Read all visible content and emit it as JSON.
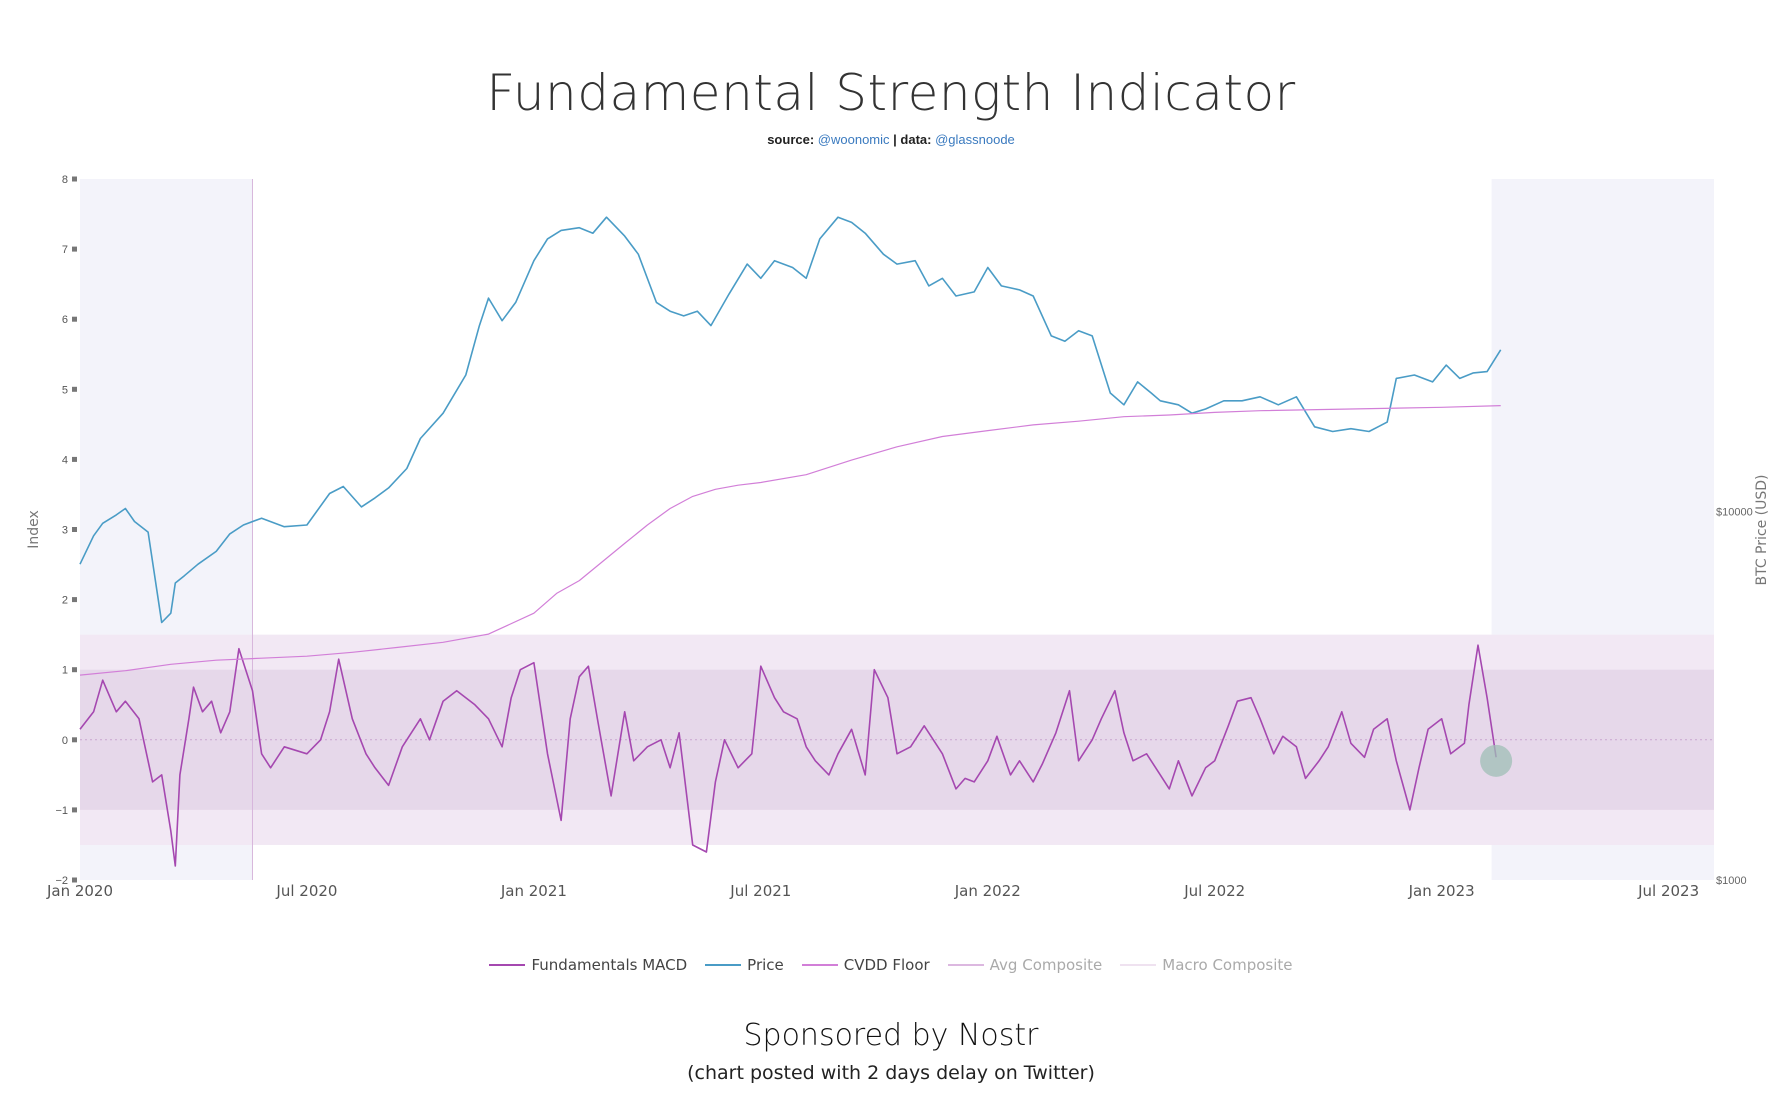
{
  "header": {
    "title": "Fundamental Strength Indicator",
    "source_prefix": "source:",
    "source_handle": "@woonomic",
    "data_prefix": "| data:",
    "data_handle": "@glassnoode"
  },
  "footer": {
    "sponsor": "Sponsored by Nostr",
    "note": "(chart posted with 2 days delay on Twitter)"
  },
  "colors": {
    "price": "#4a9cc6",
    "macd": "#a548b0",
    "cvdd": "#d27fd8",
    "avg": "#dcb8e0",
    "macro": "#efe2f0",
    "shade": "#f3f3fa",
    "band_outer": "#f2e8f4",
    "band_inner": "#e6d8ea",
    "marker": "#9fbfb5"
  },
  "chart_data": {
    "type": "line",
    "x_ticks": [
      "Jan 2020",
      "Jul 2020",
      "Jan 2021",
      "Jul 2021",
      "Jan 2022",
      "Jul 2022",
      "Jan 2023",
      "Jul 2023"
    ],
    "x_tick_dates": [
      2020.0,
      2020.5,
      2021.0,
      2021.5,
      2022.0,
      2022.5,
      2023.0,
      2023.5
    ],
    "x_range": [
      2020.0,
      2023.6
    ],
    "left_axis": {
      "label": "Index",
      "range": [
        -2,
        8
      ],
      "ticks": [
        "−2",
        "−1",
        "0",
        "1",
        "2",
        "3",
        "4",
        "5",
        "6",
        "7",
        "8"
      ],
      "tick_values": [
        -2,
        -1,
        0,
        1,
        2,
        3,
        4,
        5,
        6,
        7,
        8
      ]
    },
    "right_axis": {
      "label": "BTC Price (USD)",
      "scale": "log",
      "ticks": [
        "$1000",
        "$10000"
      ],
      "tick_values": [
        1000,
        10000
      ]
    },
    "shaded_periods": [
      [
        2020.0,
        2020.38
      ],
      [
        2023.11,
        2023.6
      ]
    ],
    "bands": {
      "outer": [
        -1.5,
        1.5
      ],
      "inner": [
        -1,
        1
      ]
    },
    "series": [
      {
        "name": "Fundamentals MACD",
        "axis": "left",
        "x": [
          2020.0,
          2020.03,
          2020.05,
          2020.08,
          2020.1,
          2020.13,
          2020.16,
          2020.18,
          2020.2,
          2020.21,
          2020.22,
          2020.24,
          2020.25,
          2020.27,
          2020.29,
          2020.31,
          2020.33,
          2020.35,
          2020.38,
          2020.4,
          2020.42,
          2020.45,
          2020.5,
          2020.53,
          2020.55,
          2020.57,
          2020.6,
          2020.63,
          2020.65,
          2020.68,
          2020.71,
          2020.75,
          2020.77,
          2020.8,
          2020.83,
          2020.85,
          2020.87,
          2020.9,
          2020.93,
          2020.95,
          2020.97,
          2021.0,
          2021.03,
          2021.06,
          2021.08,
          2021.1,
          2021.12,
          2021.14,
          2021.17,
          2021.2,
          2021.22,
          2021.25,
          2021.28,
          2021.3,
          2021.32,
          2021.35,
          2021.38,
          2021.4,
          2021.42,
          2021.45,
          2021.48,
          2021.5,
          2021.53,
          2021.55,
          2021.58,
          2021.6,
          2021.62,
          2021.65,
          2021.67,
          2021.7,
          2021.73,
          2021.75,
          2021.78,
          2021.8,
          2021.83,
          2021.86,
          2021.88,
          2021.9,
          2021.93,
          2021.95,
          2021.97,
          2022.0,
          2022.02,
          2022.05,
          2022.07,
          2022.1,
          2022.12,
          2022.15,
          2022.18,
          2022.2,
          2022.23,
          2022.25,
          2022.28,
          2022.3,
          2022.32,
          2022.35,
          2022.38,
          2022.4,
          2022.42,
          2022.45,
          2022.48,
          2022.5,
          2022.53,
          2022.55,
          2022.58,
          2022.6,
          2022.63,
          2022.65,
          2022.68,
          2022.7,
          2022.73,
          2022.75,
          2022.78,
          2022.8,
          2022.83,
          2022.85,
          2022.88,
          2022.9,
          2022.93,
          2022.95,
          2022.97,
          2023.0,
          2023.02,
          2023.05,
          2023.06,
          2023.08,
          2023.1,
          2023.12
        ],
        "y": [
          0.15,
          0.4,
          0.85,
          0.4,
          0.55,
          0.3,
          -0.6,
          -0.5,
          -1.3,
          -1.8,
          -0.5,
          0.3,
          0.75,
          0.4,
          0.55,
          0.1,
          0.4,
          1.3,
          0.7,
          -0.2,
          -0.4,
          -0.1,
          -0.2,
          0.0,
          0.4,
          1.15,
          0.3,
          -0.2,
          -0.4,
          -0.65,
          -0.1,
          0.3,
          0.0,
          0.55,
          0.7,
          0.6,
          0.5,
          0.3,
          -0.1,
          0.6,
          1.0,
          1.1,
          -0.2,
          -1.15,
          0.3,
          0.9,
          1.05,
          0.3,
          -0.8,
          0.4,
          -0.3,
          -0.1,
          0.0,
          -0.4,
          0.1,
          -1.5,
          -1.6,
          -0.6,
          0.0,
          -0.4,
          -0.2,
          1.05,
          0.6,
          0.4,
          0.3,
          -0.1,
          -0.3,
          -0.5,
          -0.2,
          0.15,
          -0.5,
          1.0,
          0.6,
          -0.2,
          -0.1,
          0.2,
          0.0,
          -0.2,
          -0.7,
          -0.55,
          -0.6,
          -0.3,
          0.05,
          -0.5,
          -0.3,
          -0.6,
          -0.35,
          0.1,
          0.7,
          -0.3,
          0.0,
          0.3,
          0.7,
          0.1,
          -0.3,
          -0.2,
          -0.5,
          -0.7,
          -0.3,
          -0.8,
          -0.4,
          -0.3,
          0.2,
          0.55,
          0.6,
          0.3,
          -0.2,
          0.05,
          -0.1,
          -0.55,
          -0.3,
          -0.1,
          0.4,
          -0.05,
          -0.25,
          0.15,
          0.3,
          -0.3,
          -1.0,
          -0.4,
          0.15,
          0.3,
          -0.2,
          -0.05,
          0.5,
          1.35,
          0.6,
          -0.25
        ]
      },
      {
        "name": "Price",
        "axis": "right",
        "x": [
          2020.0,
          2020.03,
          2020.05,
          2020.08,
          2020.1,
          2020.12,
          2020.15,
          2020.18,
          2020.2,
          2020.21,
          2020.23,
          2020.26,
          2020.3,
          2020.33,
          2020.36,
          2020.4,
          2020.45,
          2020.5,
          2020.55,
          2020.58,
          2020.62,
          2020.65,
          2020.68,
          2020.72,
          2020.75,
          2020.8,
          2020.85,
          2020.88,
          2020.9,
          2020.93,
          2020.96,
          2021.0,
          2021.03,
          2021.06,
          2021.1,
          2021.13,
          2021.16,
          2021.2,
          2021.23,
          2021.27,
          2021.3,
          2021.33,
          2021.36,
          2021.39,
          2021.43,
          2021.47,
          2021.5,
          2021.53,
          2021.57,
          2021.6,
          2021.63,
          2021.67,
          2021.7,
          2021.73,
          2021.77,
          2021.8,
          2021.84,
          2021.87,
          2021.9,
          2021.93,
          2021.97,
          2022.0,
          2022.03,
          2022.07,
          2022.1,
          2022.14,
          2022.17,
          2022.2,
          2022.23,
          2022.27,
          2022.3,
          2022.33,
          2022.36,
          2022.38,
          2022.42,
          2022.45,
          2022.48,
          2022.52,
          2022.56,
          2022.6,
          2022.64,
          2022.68,
          2022.72,
          2022.76,
          2022.8,
          2022.84,
          2022.86,
          2022.88,
          2022.9,
          2022.94,
          2022.98,
          2023.01,
          2023.04,
          2023.07,
          2023.1,
          2023.13
        ],
        "y": [
          7200,
          8600,
          9300,
          9800,
          10200,
          9400,
          8800,
          5000,
          5300,
          6400,
          6700,
          7200,
          7800,
          8700,
          9200,
          9600,
          9100,
          9200,
          11200,
          11700,
          10300,
          10900,
          11600,
          13100,
          15800,
          18500,
          23500,
          32000,
          38000,
          33000,
          37000,
          48000,
          55000,
          58000,
          59000,
          57000,
          63000,
          56000,
          50000,
          37000,
          35000,
          34000,
          35000,
          32000,
          39000,
          47000,
          43000,
          48000,
          46000,
          43000,
          55000,
          63000,
          61000,
          57000,
          50000,
          47000,
          48000,
          41000,
          43000,
          38500,
          39500,
          46000,
          41000,
          40000,
          38500,
          30000,
          29000,
          31000,
          30000,
          21000,
          19500,
          22500,
          21000,
          20000,
          19500,
          18500,
          19000,
          20000,
          20000,
          20500,
          19500,
          20500,
          17000,
          16500,
          16800,
          16500,
          17000,
          17500,
          23000,
          23500,
          22500,
          25000,
          23000,
          23800,
          24000,
          27500
        ]
      },
      {
        "name": "CVDD Floor",
        "axis": "right",
        "x": [
          2020.0,
          2020.1,
          2020.2,
          2020.3,
          2020.4,
          2020.5,
          2020.6,
          2020.7,
          2020.8,
          2020.9,
          2021.0,
          2021.05,
          2021.1,
          2021.15,
          2021.2,
          2021.25,
          2021.3,
          2021.35,
          2021.4,
          2021.45,
          2021.5,
          2021.6,
          2021.7,
          2021.8,
          2021.9,
          2022.0,
          2022.1,
          2022.2,
          2022.3,
          2022.4,
          2022.5,
          2022.6,
          2022.8,
          2023.0,
          2023.13
        ],
        "y": [
          3600,
          3700,
          3850,
          3950,
          4000,
          4050,
          4150,
          4280,
          4420,
          4650,
          5300,
          6000,
          6500,
          7300,
          8200,
          9200,
          10200,
          11000,
          11500,
          11800,
          12000,
          12600,
          13800,
          15000,
          16000,
          16600,
          17200,
          17600,
          18100,
          18300,
          18600,
          18800,
          19000,
          19200,
          19400
        ]
      }
    ],
    "annotations": [
      {
        "type": "marker",
        "x": 2023.12,
        "y": -0.3
      }
    ],
    "legend": [
      "Fundamentals MACD",
      "Price",
      "CVDD Floor",
      "Avg Composite",
      "Macro Composite"
    ],
    "legend_placement": "bottom"
  }
}
